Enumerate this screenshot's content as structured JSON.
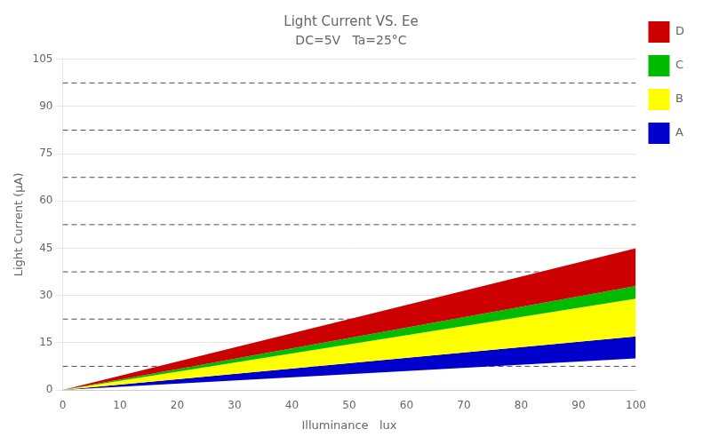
{
  "chart_data": {
    "type": "area",
    "title": "Light Current VS. Ee",
    "subtitle": "DC=5V   Ta=25°C",
    "xlabel": "Illuminance   lux",
    "ylabel": "Light Current (μA)",
    "x": [
      0,
      100
    ],
    "series": [
      {
        "name": "D",
        "color": "#CC0000",
        "lower": [
          0,
          33
        ],
        "values": [
          0,
          45
        ]
      },
      {
        "name": "C",
        "color": "#00BB00",
        "lower": [
          0,
          29
        ],
        "values": [
          0,
          33
        ]
      },
      {
        "name": "B",
        "color": "#FFFF00",
        "lower": [
          0,
          17
        ],
        "values": [
          0,
          29
        ]
      },
      {
        "name": "A",
        "color": "#0000CC",
        "lower": [
          0,
          10
        ],
        "values": [
          0,
          17
        ]
      }
    ],
    "hlines": [
      {
        "value": 7.5,
        "line_style": "dashed",
        "color": "#000000"
      },
      {
        "value": 22.5,
        "line_style": "dashed",
        "color": "#000000"
      },
      {
        "value": 37.5,
        "line_style": "dashed",
        "color": "#000000"
      },
      {
        "value": 52.5,
        "line_style": "dashed",
        "color": "#000000"
      },
      {
        "value": 67.5,
        "line_style": "dashed",
        "color": "#000000"
      },
      {
        "value": 82.5,
        "line_style": "dashed",
        "color": "#000000"
      },
      {
        "value": 97.5,
        "line_style": "dashed",
        "color": "#000000"
      }
    ],
    "xlim": [
      0,
      100
    ],
    "ylim": [
      0,
      105
    ],
    "xticks": [
      0,
      10,
      20,
      30,
      40,
      50,
      60,
      70,
      80,
      90,
      100
    ],
    "yticks": [
      0,
      15,
      30,
      45,
      60,
      75,
      90,
      105
    ],
    "grid": "y",
    "legend": "right"
  }
}
